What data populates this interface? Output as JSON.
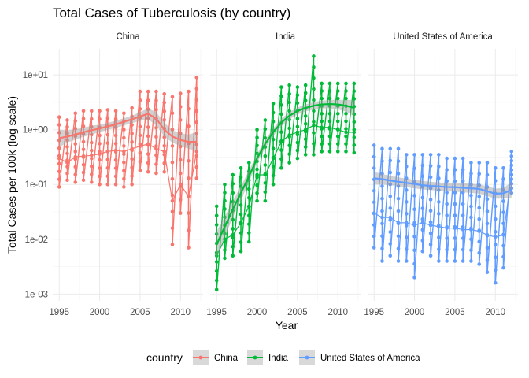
{
  "chart_data": {
    "type": "line",
    "title": "Total Cases of Tuberculosis (by country)",
    "xlabel": "Year",
    "ylabel": "Total Cases per 100k (log scale)",
    "x_ticks": [
      "1995",
      "2000",
      "2005",
      "2010"
    ],
    "y_ticks": [
      "1e-03",
      "1e-02",
      "1e-01",
      "1e+00",
      "1e+01"
    ],
    "y_scale": "log10",
    "xlim": [
      1994.2,
      2012.8
    ],
    "ylim": [
      0.00075,
      30
    ],
    "grid": true,
    "legend": {
      "title": "country",
      "position": "bottom",
      "entries": [
        "China",
        "India",
        "United States of America"
      ]
    },
    "smooth": "loess trend with grey confidence band",
    "panels": [
      {
        "name": "China",
        "color": "#F8766D",
        "x": [
          1995,
          1996,
          1997,
          1998,
          1999,
          2000,
          2001,
          2002,
          2003,
          2004,
          2005,
          2006,
          2007,
          2008,
          2009,
          2010,
          2011,
          2012
        ],
        "low": [
          0.09,
          0.12,
          0.11,
          0.12,
          0.11,
          0.1,
          0.1,
          0.1,
          0.09,
          0.1,
          0.18,
          0.17,
          0.16,
          0.17,
          0.008,
          0.03,
          0.007,
          0.13
        ],
        "mid": [
          0.3,
          0.25,
          0.32,
          0.33,
          0.34,
          0.36,
          0.4,
          0.42,
          0.4,
          0.45,
          0.5,
          0.55,
          0.45,
          0.4,
          0.05,
          0.1,
          0.06,
          0.4
        ],
        "high": [
          1.7,
          1.5,
          2.0,
          2.2,
          2.2,
          2.2,
          2.3,
          2.2,
          2.0,
          2.5,
          5.0,
          5.0,
          5.0,
          4.5,
          4.0,
          4.6,
          5.0,
          9.0
        ],
        "trend": [
          0.7,
          0.75,
          0.82,
          0.9,
          0.98,
          1.05,
          1.15,
          1.25,
          1.4,
          1.55,
          1.75,
          1.95,
          1.6,
          1.0,
          0.75,
          0.65,
          0.6,
          0.6
        ],
        "band_low": [
          0.48,
          0.58,
          0.66,
          0.74,
          0.82,
          0.9,
          1.0,
          1.08,
          1.2,
          1.32,
          1.45,
          1.55,
          1.2,
          0.75,
          0.58,
          0.5,
          0.45,
          0.4
        ],
        "band_high": [
          1.0,
          0.97,
          1.02,
          1.1,
          1.18,
          1.24,
          1.34,
          1.46,
          1.62,
          1.8,
          2.1,
          2.45,
          2.1,
          1.35,
          0.98,
          0.86,
          0.82,
          0.9
        ]
      },
      {
        "name": "India",
        "color": "#00BA38",
        "x": [
          1995,
          1996,
          1997,
          1998,
          1999,
          2000,
          2001,
          2002,
          2003,
          2004,
          2005,
          2006,
          2007,
          2008,
          2009,
          2010,
          2011,
          2012
        ],
        "low": [
          0.0012,
          0.0045,
          0.005,
          0.006,
          0.009,
          0.05,
          0.05,
          0.1,
          0.2,
          0.25,
          0.3,
          0.35,
          0.35,
          0.4,
          0.4,
          0.4,
          0.4,
          0.38
        ],
        "mid": [
          0.005,
          0.01,
          0.012,
          0.02,
          0.04,
          0.15,
          0.15,
          0.3,
          0.6,
          0.8,
          0.9,
          1.0,
          1.2,
          1.1,
          1.1,
          1.0,
          0.9,
          0.9
        ],
        "high": [
          0.04,
          0.1,
          0.15,
          0.2,
          0.25,
          1.0,
          1.5,
          3.0,
          6.0,
          6.5,
          6.0,
          6.5,
          22.0,
          7.0,
          7.0,
          7.0,
          7.0,
          7.0
        ],
        "trend": [
          0.008,
          0.017,
          0.035,
          0.07,
          0.14,
          0.3,
          0.55,
          0.9,
          1.35,
          1.8,
          2.2,
          2.5,
          2.75,
          2.9,
          2.95,
          2.9,
          2.75,
          2.5
        ],
        "band_low": [
          0.0045,
          0.011,
          0.025,
          0.052,
          0.11,
          0.25,
          0.46,
          0.76,
          1.15,
          1.55,
          1.9,
          2.15,
          2.35,
          2.45,
          2.45,
          2.35,
          2.15,
          1.75
        ],
        "band_high": [
          0.014,
          0.026,
          0.05,
          0.094,
          0.18,
          0.36,
          0.66,
          1.06,
          1.58,
          2.1,
          2.55,
          2.9,
          3.2,
          3.4,
          3.5,
          3.5,
          3.5,
          3.5
        ]
      },
      {
        "name": "United States of America",
        "color": "#619CFF",
        "x": [
          1995,
          1996,
          1997,
          1998,
          1999,
          2000,
          2001,
          2002,
          2003,
          2004,
          2005,
          2006,
          2007,
          2008,
          2009,
          2010,
          2011,
          2012
        ],
        "low": [
          0.007,
          0.004,
          0.005,
          0.004,
          0.004,
          0.002,
          0.006,
          0.005,
          0.004,
          0.004,
          0.004,
          0.004,
          0.004,
          0.0035,
          0.0025,
          0.0016,
          0.003,
          0.07
        ],
        "mid": [
          0.03,
          0.025,
          0.025,
          0.02,
          0.02,
          0.018,
          0.02,
          0.018,
          0.017,
          0.016,
          0.016,
          0.015,
          0.015,
          0.014,
          0.012,
          0.011,
          0.012,
          0.15
        ],
        "high": [
          0.52,
          0.45,
          0.45,
          0.45,
          0.35,
          0.35,
          0.35,
          0.35,
          0.35,
          0.3,
          0.3,
          0.3,
          0.25,
          0.25,
          0.25,
          0.2,
          0.2,
          0.4
        ],
        "trend": [
          0.13,
          0.125,
          0.118,
          0.112,
          0.107,
          0.102,
          0.097,
          0.094,
          0.092,
          0.09,
          0.089,
          0.087,
          0.085,
          0.083,
          0.075,
          0.068,
          0.069,
          0.08
        ],
        "band_low": [
          0.1,
          0.1,
          0.097,
          0.093,
          0.089,
          0.085,
          0.081,
          0.079,
          0.077,
          0.075,
          0.074,
          0.072,
          0.07,
          0.068,
          0.061,
          0.055,
          0.055,
          0.058
        ],
        "band_high": [
          0.17,
          0.156,
          0.144,
          0.135,
          0.128,
          0.122,
          0.116,
          0.112,
          0.109,
          0.107,
          0.106,
          0.105,
          0.103,
          0.101,
          0.092,
          0.084,
          0.087,
          0.11
        ]
      }
    ]
  }
}
